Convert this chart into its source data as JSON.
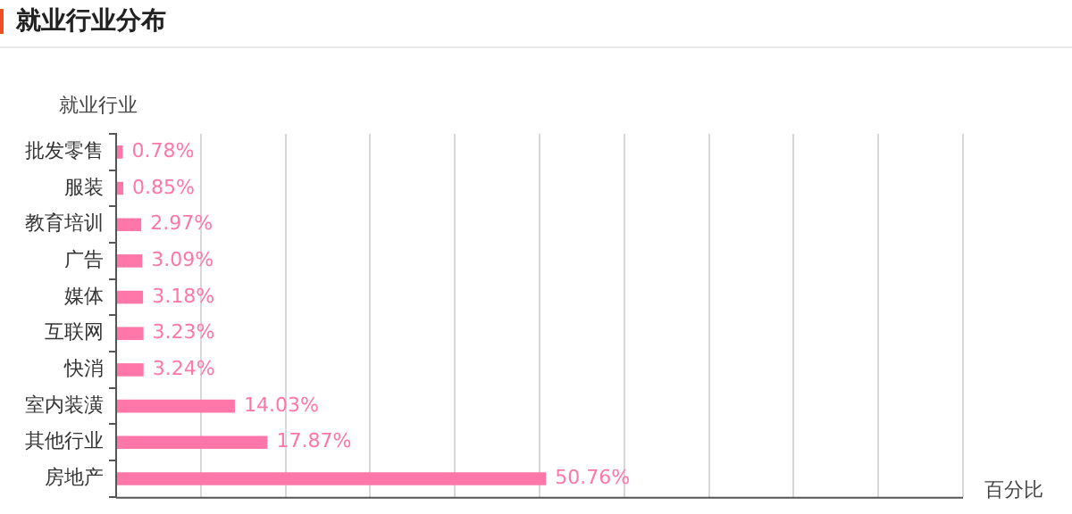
{
  "chart_data": {
    "type": "bar",
    "orientation": "horizontal",
    "title": "就业行业分布",
    "ylabel": "就业行业",
    "xlabel": "百分比",
    "categories": [
      "批发零售",
      "服装",
      "教育培训",
      "广告",
      "媒体",
      "互联网",
      "快消",
      "室内装潢",
      "其他行业",
      "房地产"
    ],
    "values": [
      0.78,
      0.85,
      2.97,
      3.09,
      3.18,
      3.23,
      3.24,
      14.03,
      17.87,
      50.76
    ],
    "value_labels": [
      "0.78%",
      "0.85%",
      "2.97%",
      "3.09%",
      "3.18%",
      "3.23%",
      "3.24%",
      "14.03%",
      "17.87%",
      "50.76%"
    ],
    "color": "#ff77a9",
    "xlim": [
      0,
      100
    ],
    "grid": "x",
    "tick_labels": "y"
  }
}
